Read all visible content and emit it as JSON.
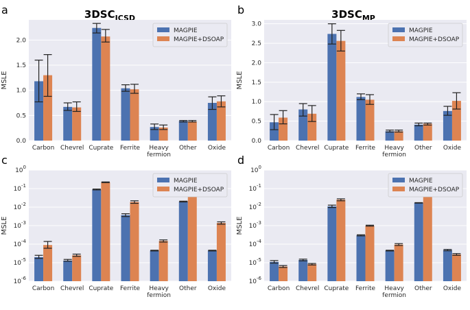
{
  "figure": {
    "left_title": {
      "main": "3DSC",
      "sub": "ICSD"
    },
    "right_title": {
      "main": "3DSC",
      "sub": "MP"
    }
  },
  "colors": {
    "magpie": "#4c72b0",
    "magpie_dsoap": "#dd8452",
    "plot_bg": "#eaeaf2",
    "grid": "#ffffff"
  },
  "chart_data": [
    {
      "panel": "a",
      "type": "bar",
      "scale": "linear",
      "ylabel": "MSLE",
      "ylim": [
        0,
        2.4
      ],
      "yticks": [
        0.0,
        0.5,
        1.0,
        1.5,
        2.0
      ],
      "ytick_labels": [
        "0.0",
        "0.5",
        "1.0",
        "1.5",
        "2.0"
      ],
      "categories": [
        [
          "Carbon"
        ],
        [
          "Chevrel"
        ],
        [
          "Cuprate"
        ],
        [
          "Ferrite"
        ],
        [
          "Heavy",
          "fermion"
        ],
        [
          "Other"
        ],
        [
          "Oxide"
        ]
      ],
      "legend": {
        "position": "top-right",
        "entries": [
          "MAGPIE",
          "MAGPIE+DSOAP"
        ]
      },
      "series": [
        {
          "name": "MAGPIE",
          "values": [
            1.18,
            0.67,
            2.24,
            1.04,
            0.27,
            0.39,
            0.75
          ],
          "err": [
            [
              0.77,
              1.6
            ],
            [
              0.6,
              0.75
            ],
            [
              2.14,
              2.33
            ],
            [
              0.98,
              1.11
            ],
            [
              0.22,
              0.33
            ],
            [
              0.37,
              0.4
            ],
            [
              0.62,
              0.87
            ]
          ]
        },
        {
          "name": "MAGPIE+DSOAP",
          "values": [
            1.3,
            0.66,
            2.07,
            1.02,
            0.26,
            0.38,
            0.78
          ],
          "err": [
            [
              0.88,
              1.71
            ],
            [
              0.58,
              0.77
            ],
            [
              1.96,
              2.21
            ],
            [
              0.94,
              1.12
            ],
            [
              0.22,
              0.31
            ],
            [
              0.37,
              0.4
            ],
            [
              0.67,
              0.89
            ]
          ]
        }
      ]
    },
    {
      "panel": "b",
      "type": "bar",
      "scale": "linear",
      "ylabel": "MSLE",
      "ylim": [
        0,
        3.1
      ],
      "yticks": [
        0.0,
        0.5,
        1.0,
        1.5,
        2.0,
        2.5,
        3.0
      ],
      "ytick_labels": [
        "0.0",
        "0.5",
        "1.0",
        "1.5",
        "2.0",
        "2.5",
        "3.0"
      ],
      "categories": [
        [
          "Carbon"
        ],
        [
          "Chevrel"
        ],
        [
          "Cuprate"
        ],
        [
          "Ferrite"
        ],
        [
          "Heavy",
          "fermion"
        ],
        [
          "Other"
        ],
        [
          "Oxide"
        ]
      ],
      "legend": {
        "position": "top-right",
        "entries": [
          "MAGPIE",
          "MAGPIE+DSOAP"
        ]
      },
      "series": [
        {
          "name": "MAGPIE",
          "values": [
            0.47,
            0.8,
            2.74,
            1.12,
            0.24,
            0.41,
            0.76
          ],
          "err": [
            [
              0.28,
              0.67
            ],
            [
              0.63,
              0.95
            ],
            [
              2.48,
              3.0
            ],
            [
              1.05,
              1.2
            ],
            [
              0.22,
              0.27
            ],
            [
              0.38,
              0.45
            ],
            [
              0.65,
              0.88
            ]
          ]
        },
        {
          "name": "MAGPIE+DSOAP",
          "values": [
            0.59,
            0.69,
            2.56,
            1.05,
            0.24,
            0.43,
            1.02
          ],
          "err": [
            [
              0.43,
              0.77
            ],
            [
              0.49,
              0.9
            ],
            [
              2.3,
              2.83
            ],
            [
              0.93,
              1.18
            ],
            [
              0.22,
              0.27
            ],
            [
              0.4,
              0.45
            ],
            [
              0.81,
              1.23
            ]
          ]
        }
      ]
    },
    {
      "panel": "c",
      "type": "bar",
      "scale": "log",
      "ylabel": "MSLE",
      "ylim_exp": [
        -6,
        0
      ],
      "yticks_exp": [
        -6,
        -5,
        -4,
        -3,
        -2,
        -1,
        0
      ],
      "ytick_labels": [
        {
          "base": "10",
          "exp": "-6"
        },
        {
          "base": "10",
          "exp": "-5"
        },
        {
          "base": "10",
          "exp": "-4"
        },
        {
          "base": "10",
          "exp": "-3"
        },
        {
          "base": "10",
          "exp": "-2"
        },
        {
          "base": "10",
          "exp": "-1"
        },
        {
          "base": "10",
          "exp": "0"
        }
      ],
      "categories": [
        [
          "Carbon"
        ],
        [
          "Chevrel"
        ],
        [
          "Cuprate"
        ],
        [
          "Ferrite"
        ],
        [
          "Heavy",
          "fermion"
        ],
        [
          "Other"
        ],
        [
          "Oxide"
        ]
      ],
      "legend": {
        "position": "top-right",
        "entries": [
          "MAGPIE",
          "MAGPIE+DSOAP"
        ]
      },
      "series": [
        {
          "name": "MAGPIE",
          "values": [
            2e-05,
            1.3e-05,
            0.09,
            0.0037,
            4.5e-05,
            0.02,
            4.5e-05
          ],
          "err": [
            [
              1.7e-05,
              2.5e-05
            ],
            [
              1.2e-05,
              1.5e-05
            ],
            [
              0.085,
              0.095
            ],
            [
              0.0031,
              0.0044
            ],
            [
              4.3e-05,
              4.7e-05
            ],
            [
              0.019,
              0.021
            ],
            [
              4.3e-05,
              4.7e-05
            ]
          ]
        },
        {
          "name": "MAGPIE+DSOAP",
          "values": [
            9e-05,
            2.5e-05,
            0.22,
            0.019,
            0.00015,
            0.06,
            0.0014
          ],
          "err": [
            [
              6e-05,
              0.00014
            ],
            [
              2.2e-05,
              2.9e-05
            ],
            [
              0.21,
              0.23
            ],
            [
              0.016,
              0.022
            ],
            [
              0.00013,
              0.00017
            ],
            [
              0.058,
              0.062
            ],
            [
              0.0012,
              0.0016
            ]
          ]
        }
      ]
    },
    {
      "panel": "d",
      "type": "bar",
      "scale": "log",
      "ylabel": "MSLE",
      "ylim_exp": [
        -6,
        0
      ],
      "yticks_exp": [
        -6,
        -5,
        -4,
        -3,
        -2,
        -1,
        0
      ],
      "ytick_labels": [
        {
          "base": "10",
          "exp": "-6"
        },
        {
          "base": "10",
          "exp": "-5"
        },
        {
          "base": "10",
          "exp": "-4"
        },
        {
          "base": "10",
          "exp": "-3"
        },
        {
          "base": "10",
          "exp": "-2"
        },
        {
          "base": "10",
          "exp": "-1"
        },
        {
          "base": "10",
          "exp": "0"
        }
      ],
      "categories": [
        [
          "Carbon"
        ],
        [
          "Chevrel"
        ],
        [
          "Cuprate"
        ],
        [
          "Ferrite"
        ],
        [
          "Heavy",
          "fermion"
        ],
        [
          "Other"
        ],
        [
          "Oxide"
        ]
      ],
      "legend": {
        "position": "top-right",
        "entries": [
          "MAGPIE",
          "MAGPIE+DSOAP"
        ]
      },
      "series": [
        {
          "name": "MAGPIE",
          "values": [
            1.1e-05,
            1.4e-05,
            0.011,
            0.0003,
            4.5e-05,
            0.017,
            4.8e-05
          ],
          "err": [
            [
              9.5e-06,
              1.3e-05
            ],
            [
              1.25e-05,
              1.55e-05
            ],
            [
              0.0095,
              0.0128
            ],
            [
              0.00028,
              0.00032
            ],
            [
              4.3e-05,
              4.7e-05
            ],
            [
              0.0165,
              0.0175
            ],
            [
              4.4e-05,
              5.2e-05
            ]
          ]
        },
        {
          "name": "MAGPIE+DSOAP",
          "values": [
            6.2e-06,
            8.3e-06,
            0.025,
            0.001,
            9.5e-05,
            0.055,
            2.8e-05
          ],
          "err": [
            [
              5.5e-06,
              7e-06
            ],
            [
              7.5e-06,
              9.1e-06
            ],
            [
              0.022,
              0.028
            ],
            [
              0.00094,
              0.00106
            ],
            [
              8.5e-05,
              0.000107
            ],
            [
              0.053,
              0.057
            ],
            [
              2.5e-05,
              3.1e-05
            ]
          ]
        }
      ]
    }
  ]
}
